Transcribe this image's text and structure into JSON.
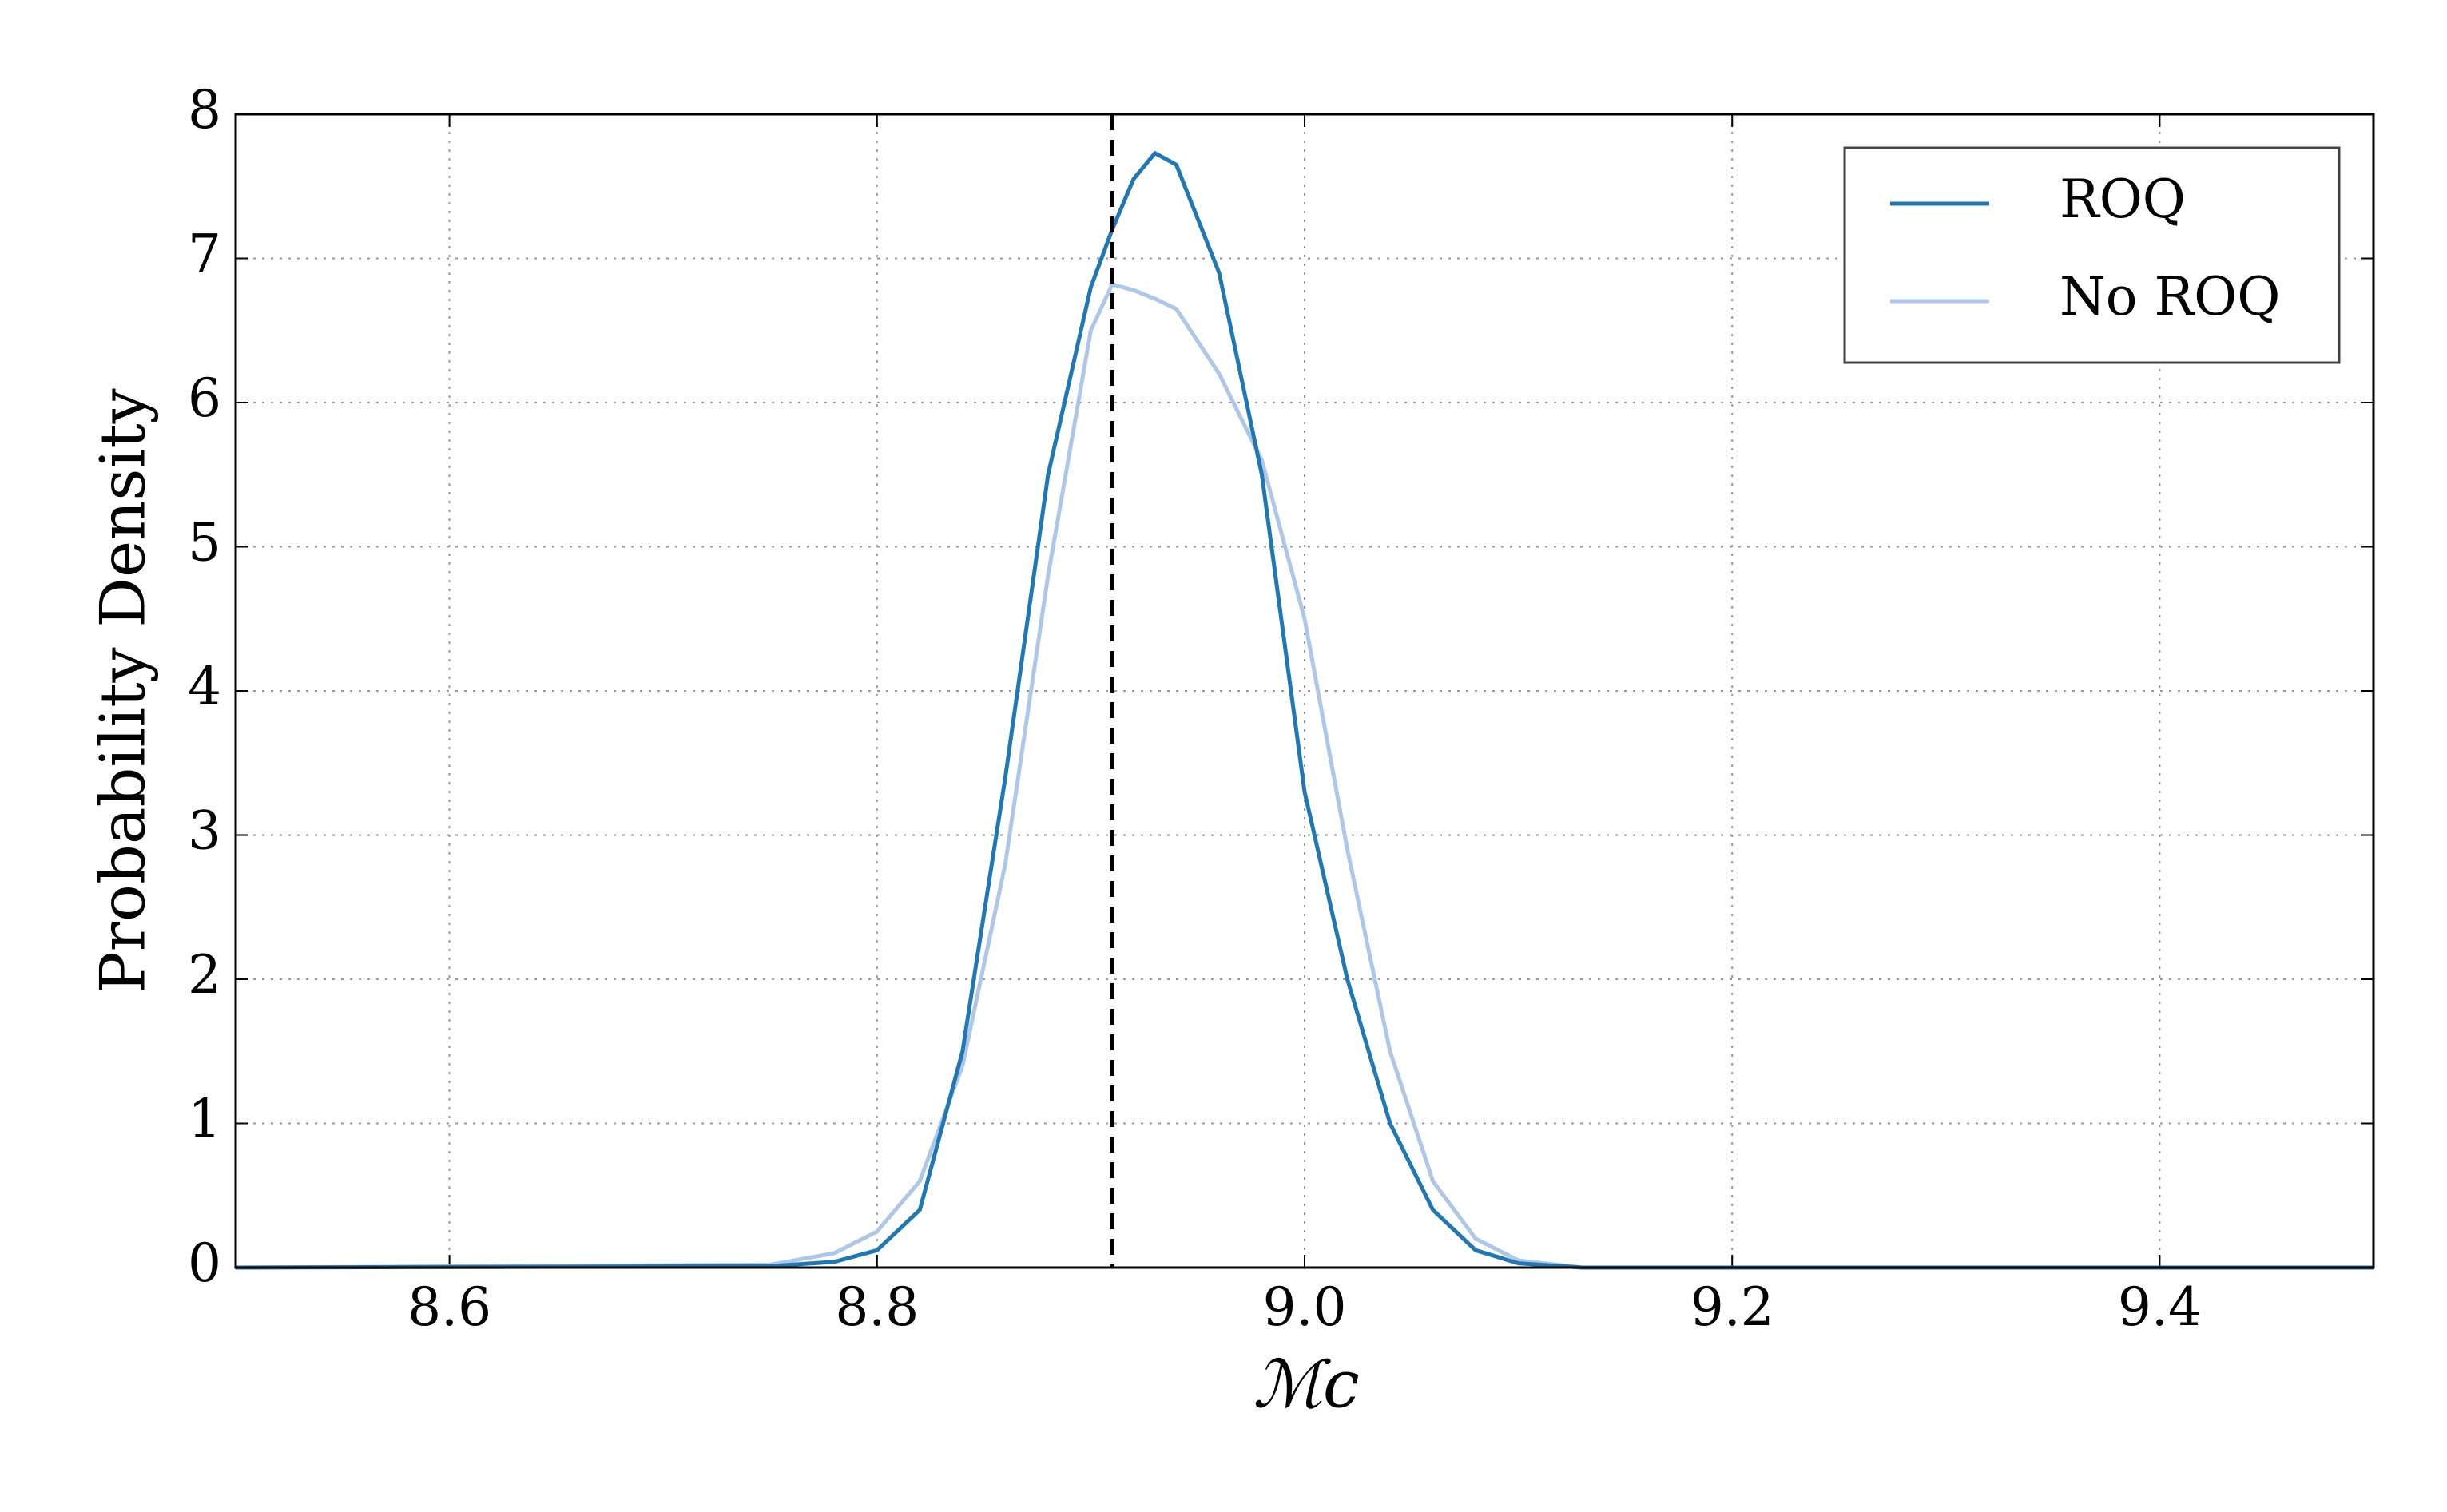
{
  "chart_data": {
    "type": "line",
    "xlabel": "ℳc",
    "ylabel": "Probability Density",
    "x": [
      8.5,
      8.75,
      8.78,
      8.8,
      8.82,
      8.84,
      8.86,
      8.88,
      8.9,
      8.91,
      8.92,
      8.93,
      8.94,
      8.96,
      8.98,
      9.0,
      9.02,
      9.04,
      9.06,
      9.08,
      9.1,
      9.13,
      9.5
    ],
    "series": [
      {
        "name": "ROQ",
        "color": "#1f77b4",
        "values": [
          0,
          0.01,
          0.04,
          0.12,
          0.4,
          1.5,
          3.4,
          5.5,
          6.8,
          7.2,
          7.55,
          7.73,
          7.65,
          6.9,
          5.5,
          3.3,
          2.0,
          1.0,
          0.4,
          0.12,
          0.03,
          0,
          0
        ]
      },
      {
        "name": "No ROQ",
        "color": "#aec7e8",
        "values": [
          0,
          0.02,
          0.1,
          0.25,
          0.6,
          1.4,
          2.8,
          4.8,
          6.5,
          6.82,
          6.78,
          6.72,
          6.65,
          6.2,
          5.6,
          4.5,
          2.9,
          1.5,
          0.6,
          0.2,
          0.05,
          0,
          0
        ]
      }
    ],
    "vline": 8.91,
    "vline_color": "#000000",
    "xlim": [
      8.5,
      9.5
    ],
    "xticks": [
      8.6,
      8.8,
      {
        "value": 9.0,
        "label": "9.0"
      },
      9.2,
      9.4
    ],
    "ylim": [
      0,
      8
    ],
    "yticks": [
      0,
      1,
      2,
      3,
      4,
      5,
      6,
      7,
      8
    ],
    "grid": true,
    "legend": "upper right"
  }
}
